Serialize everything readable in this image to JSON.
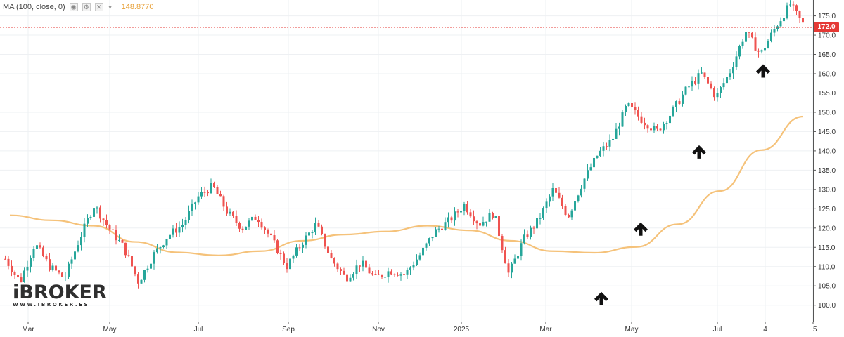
{
  "legend": {
    "indicator": "MA (100, close, 0)",
    "ma_value": "148.8770",
    "settings_icon": "gear-icon",
    "visibility_icon": "eye-icon",
    "remove_icon": "close-icon",
    "menu_icon": "chevron-down-icon"
  },
  "logo": {
    "name": "iBROKER",
    "url": "WWW.IBROKER.ES"
  },
  "last_price_label": "172.0",
  "colors": {
    "up": "#26a69a",
    "down": "#ef5350",
    "ma": "#f5c27a",
    "last_price": "#e53935",
    "arrow": "#111111",
    "grid": "#eef0f3"
  },
  "chart_data": {
    "type": "candlestick",
    "title": "",
    "ylim": [
      96,
      178
    ],
    "y_ticks": [
      "100.0",
      "105.0",
      "110.0",
      "115.0",
      "120.0",
      "125.0",
      "130.0",
      "135.0",
      "140.0",
      "145.0",
      "150.0",
      "155.0",
      "160.0",
      "165.0",
      "170.0",
      "175.0"
    ],
    "x_tick_labels": [
      "Mar",
      "May",
      "Jul",
      "Sep",
      "Nov",
      "2025",
      "Mar",
      "May",
      "Jul",
      "4",
      "5"
    ],
    "last_price": 172.0,
    "grid": true,
    "price_anchors": [
      {
        "x": "Feb",
        "close": 112
      },
      {
        "x": "Mar",
        "close": 106
      },
      {
        "x": "Mar",
        "close": 116
      },
      {
        "x": "Apr",
        "close": 110
      },
      {
        "x": "Apr",
        "close": 107
      },
      {
        "x": "May",
        "close": 117
      },
      {
        "x": "May",
        "close": 126
      },
      {
        "x": "Jun",
        "close": 120
      },
      {
        "x": "Jun",
        "close": 115
      },
      {
        "x": "Jul",
        "close": 106
      },
      {
        "x": "Jul",
        "close": 113
      },
      {
        "x": "Aug",
        "close": 118
      },
      {
        "x": "Aug",
        "close": 121
      },
      {
        "x": "Sep",
        "close": 128
      },
      {
        "x": "Sep",
        "close": 131
      },
      {
        "x": "Sep",
        "close": 124
      },
      {
        "x": "Oct",
        "close": 120
      },
      {
        "x": "Oct",
        "close": 123
      },
      {
        "x": "Nov",
        "close": 117
      },
      {
        "x": "Nov",
        "close": 110
      },
      {
        "x": "Nov",
        "close": 116
      },
      {
        "x": "Dec",
        "close": 121
      },
      {
        "x": "Dec",
        "close": 112
      },
      {
        "x": "Dec",
        "close": 107
      },
      {
        "x": "Jan",
        "close": 111
      },
      {
        "x": "Jan",
        "close": 107
      },
      {
        "x": "Feb",
        "close": 109
      },
      {
        "x": "Feb",
        "close": 108
      },
      {
        "x": "Feb",
        "close": 113
      },
      {
        "x": "Mar",
        "close": 119
      },
      {
        "x": "Mar",
        "close": 122
      },
      {
        "x": "Mar",
        "close": 126
      },
      {
        "x": "Apr",
        "close": 121
      },
      {
        "x": "Apr",
        "close": 124
      },
      {
        "x": "Apr",
        "close": 108
      },
      {
        "x": "Apr",
        "close": 117
      },
      {
        "x": "May",
        "close": 122
      },
      {
        "x": "May",
        "close": 130
      },
      {
        "x": "May",
        "close": 123
      },
      {
        "x": "May",
        "close": 132
      },
      {
        "x": "May",
        "close": 139
      },
      {
        "x": "Jun",
        "close": 143
      },
      {
        "x": "Jun",
        "close": 152
      },
      {
        "x": "Jun",
        "close": 148
      },
      {
        "x": "Jun",
        "close": 145
      },
      {
        "x": "Jun",
        "close": 150
      },
      {
        "x": "Jul",
        "close": 156
      },
      {
        "x": "Jul",
        "close": 160
      },
      {
        "x": "Jul",
        "close": 154
      },
      {
        "x": "Jul",
        "close": 161
      },
      {
        "x": "Jul",
        "close": 171
      },
      {
        "x": "Aug",
        "close": 165
      },
      {
        "x": "Aug",
        "close": 172
      },
      {
        "x": "Aug",
        "close": 178
      },
      {
        "x": "Aug",
        "close": 172
      }
    ],
    "series": [
      {
        "type": "line",
        "points": [
          {
            "x": "Feb",
            "y": 123.3
          },
          {
            "x": "Mar",
            "y": 122.0
          },
          {
            "x": "Apr",
            "y": 120.6
          },
          {
            "x": "May",
            "y": 116.4
          },
          {
            "x": "Jun",
            "y": 113.7
          },
          {
            "x": "Jul",
            "y": 112.9
          },
          {
            "x": "Aug",
            "y": 114.0
          },
          {
            "x": "Sep",
            "y": 116.7
          },
          {
            "x": "Oct",
            "y": 118.3
          },
          {
            "x": "Nov",
            "y": 119.1
          },
          {
            "x": "Dec",
            "y": 120.6
          },
          {
            "x": "Jan",
            "y": 119.4
          },
          {
            "x": "Feb",
            "y": 116.7
          },
          {
            "x": "Mar",
            "y": 114.0
          },
          {
            "x": "Apr",
            "y": 113.6
          },
          {
            "x": "May",
            "y": 115.1
          },
          {
            "x": "Jun",
            "y": 121.0
          },
          {
            "x": "Jul",
            "y": 129.6
          },
          {
            "x": "Aug",
            "y": 140.2
          },
          {
            "x": "Aug",
            "y": 148.9
          }
        ]
      }
    ],
    "annotations": [
      {
        "type": "arrow-up",
        "x": "Apr",
        "y": 102
      },
      {
        "type": "arrow-up",
        "x": "May",
        "y": 120
      },
      {
        "type": "arrow-up",
        "x": "Jun",
        "y": 140
      },
      {
        "type": "arrow-up",
        "x": "Aug",
        "y": 161
      }
    ]
  }
}
